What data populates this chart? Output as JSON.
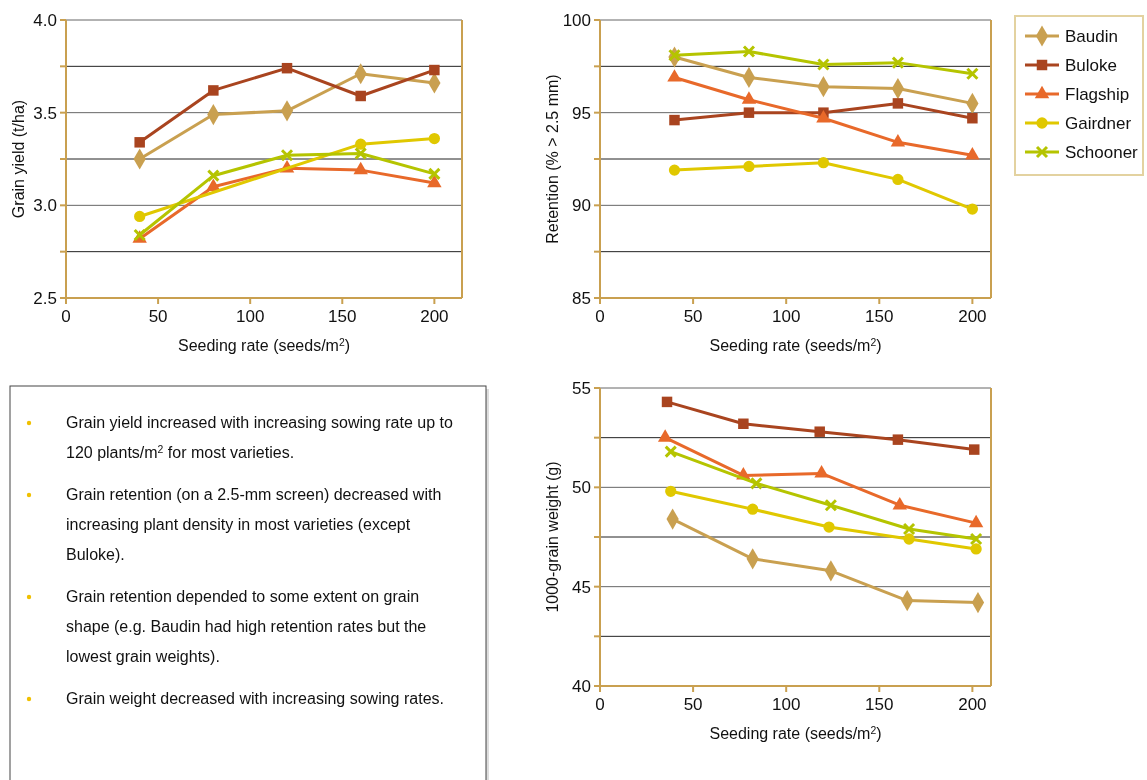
{
  "chart_data": [
    {
      "type": "line",
      "xlabel": "Seeding rate (seeds/m$^{2}$)",
      "ylabel": "Grain yield (t/ha)",
      "x": [
        40,
        80,
        120,
        160,
        200
      ],
      "xlim": [
        0,
        215
      ],
      "xticks": [
        0,
        50,
        100,
        150,
        200
      ],
      "ylim": [
        2.5,
        4.0
      ],
      "yticks": [
        2.5,
        {
          "value": 2.75,
          "label": null
        },
        {
          "value": 3.0,
          "label": "3.0"
        },
        {
          "value": 3.25,
          "label": null
        },
        3.5,
        {
          "value": 3.75,
          "label": null
        },
        {
          "value": 4.0,
          "label": "4.0"
        }
      ],
      "grid": "y",
      "series": [
        {
          "color": "#c9a050",
          "marker": "diamond",
          "values": [
            3.25,
            3.49,
            3.51,
            3.71,
            3.66
          ]
        },
        {
          "color": "#a9441f",
          "marker": "square",
          "values": [
            3.34,
            3.62,
            3.74,
            3.59,
            3.73
          ]
        },
        {
          "color": "#e8692a",
          "marker": "triangle",
          "values": [
            2.82,
            3.1,
            3.2,
            3.19,
            3.12
          ]
        },
        {
          "color": "#e0c800",
          "marker": "circle",
          "values": [
            2.94,
            null,
            null,
            3.33,
            3.36
          ]
        },
        {
          "color": "#b5c400",
          "marker": "cross",
          "values": [
            2.84,
            3.16,
            3.27,
            3.28,
            3.17
          ]
        }
      ]
    },
    {
      "type": "line",
      "xlabel": "Seeding rate (seeds/m$^{2}$)",
      "ylabel": "Retention (% > 2.5 mm)",
      "x": [
        40,
        80,
        120,
        160,
        200
      ],
      "xlim": [
        0,
        210
      ],
      "xticks": [
        0,
        50,
        100,
        150,
        200
      ],
      "ylim": [
        85,
        100
      ],
      "yticks": [
        85,
        {
          "value": 87.5,
          "label": null
        },
        90,
        {
          "value": 92.5,
          "label": null
        },
        95,
        {
          "value": 97.5,
          "label": null
        },
        100
      ],
      "grid": "y",
      "legend": "right",
      "series": [
        {
          "name": "Baudin",
          "color": "#c9a050",
          "marker": "diamond",
          "values": [
            98.0,
            96.9,
            96.4,
            96.3,
            95.5
          ]
        },
        {
          "name": "Buloke",
          "color": "#a9441f",
          "marker": "square",
          "values": [
            94.6,
            95.0,
            95.0,
            95.5,
            94.7
          ]
        },
        {
          "name": "Flagship",
          "color": "#e8692a",
          "marker": "triangle",
          "values": [
            96.9,
            95.7,
            94.7,
            93.4,
            92.7
          ]
        },
        {
          "name": "Gairdner",
          "color": "#e0c800",
          "marker": "circle",
          "values": [
            91.9,
            92.1,
            92.3,
            91.4,
            89.8
          ]
        },
        {
          "name": "Schooner",
          "color": "#b5c400",
          "marker": "cross",
          "values": [
            98.1,
            98.3,
            97.6,
            97.7,
            97.1
          ]
        }
      ]
    },
    {
      "type": "other",
      "annotations": [
        "Grain yield increased with increasing sowing rate up to 120 plants/m$^{2}$ for most varieties.",
        "Grain retention (on a 2.5-mm screen) decreased with increasing plant density in most varieties (except Buloke).",
        "Grain retention depended to some extent on grain shape (e.g. Baudin had high retention rates but the lowest grain weights).",
        "Grain weight decreased with increasing sowing rates."
      ]
    },
    {
      "type": "line",
      "xlabel": "Seeding rate (seeds/m$^{2}$)",
      "ylabel": "1000-grain weight (g)",
      "xlim": [
        0,
        210
      ],
      "xticks": [
        0,
        50,
        100,
        150,
        200
      ],
      "ylim": [
        40,
        55
      ],
      "yticks": [
        40,
        {
          "value": 42.5,
          "label": null
        },
        45,
        {
          "value": 47.5,
          "label": null
        },
        50,
        {
          "value": 52.5,
          "label": null
        },
        55
      ],
      "grid": "y",
      "series": [
        {
          "color": "#c9a050",
          "marker": "diamond",
          "x": [
            39,
            82,
            124,
            165,
            203
          ],
          "values": [
            48.4,
            46.4,
            45.8,
            44.3,
            44.2
          ]
        },
        {
          "color": "#a9441f",
          "marker": "square",
          "x": [
            36,
            77,
            118,
            160,
            201
          ],
          "values": [
            54.3,
            53.2,
            52.8,
            52.4,
            51.9
          ]
        },
        {
          "color": "#e8692a",
          "marker": "triangle",
          "x": [
            35,
            77,
            119,
            161,
            202
          ],
          "values": [
            52.5,
            50.6,
            50.7,
            49.1,
            48.2
          ]
        },
        {
          "color": "#e0c800",
          "marker": "circle",
          "x": [
            38,
            82,
            123,
            166,
            202
          ],
          "values": [
            49.8,
            48.9,
            48.0,
            47.4,
            46.9
          ]
        },
        {
          "color": "#b5c400",
          "marker": "cross",
          "x": [
            38,
            84,
            124,
            166,
            202
          ],
          "values": [
            51.8,
            50.2,
            49.1,
            47.9,
            47.4
          ]
        }
      ]
    }
  ]
}
